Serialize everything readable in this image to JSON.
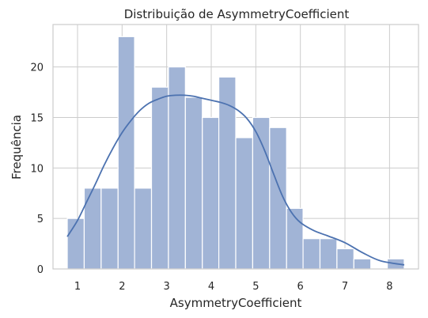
{
  "chart_data": {
    "type": "bar",
    "title": "Distribuição de AsymmetryCoefficient",
    "xlabel": "AsymmetryCoefficient",
    "ylabel": "Frequência",
    "xlim": [
      0.45,
      8.65
    ],
    "ylim": [
      0,
      24.2
    ],
    "xticks": [
      1,
      2,
      3,
      4,
      5,
      6,
      7,
      8
    ],
    "yticks": [
      0,
      5,
      10,
      15,
      20
    ],
    "grid": true,
    "colors": {
      "bar": "#a1b4d6",
      "kde": "#4c72b0",
      "grid": "#cccccc"
    },
    "bins": [
      {
        "x0": 0.77,
        "x1": 1.15,
        "count": 5
      },
      {
        "x0": 1.15,
        "x1": 1.53,
        "count": 8
      },
      {
        "x0": 1.53,
        "x1": 1.91,
        "count": 8
      },
      {
        "x0": 1.91,
        "x1": 2.28,
        "count": 23
      },
      {
        "x0": 2.28,
        "x1": 2.66,
        "count": 8
      },
      {
        "x0": 2.66,
        "x1": 3.04,
        "count": 18
      },
      {
        "x0": 3.04,
        "x1": 3.42,
        "count": 20
      },
      {
        "x0": 3.42,
        "x1": 3.8,
        "count": 17
      },
      {
        "x0": 3.8,
        "x1": 4.17,
        "count": 15
      },
      {
        "x0": 4.17,
        "x1": 4.55,
        "count": 19
      },
      {
        "x0": 4.55,
        "x1": 4.93,
        "count": 13
      },
      {
        "x0": 4.93,
        "x1": 5.31,
        "count": 15
      },
      {
        "x0": 5.31,
        "x1": 5.69,
        "count": 14
      },
      {
        "x0": 5.69,
        "x1": 6.06,
        "count": 6
      },
      {
        "x0": 6.06,
        "x1": 6.44,
        "count": 3
      },
      {
        "x0": 6.44,
        "x1": 6.82,
        "count": 3
      },
      {
        "x0": 6.82,
        "x1": 7.2,
        "count": 2
      },
      {
        "x0": 7.2,
        "x1": 7.58,
        "count": 1
      },
      {
        "x0": 7.58,
        "x1": 7.95,
        "count": 0
      },
      {
        "x0": 7.95,
        "x1": 8.33,
        "count": 1
      }
    ],
    "kde": {
      "x": [
        0.77,
        1.0,
        1.2,
        1.4,
        1.6,
        1.8,
        2.0,
        2.2,
        2.4,
        2.6,
        2.8,
        3.0,
        3.2,
        3.4,
        3.6,
        3.8,
        4.0,
        4.2,
        4.4,
        4.6,
        4.8,
        5.0,
        5.2,
        5.4,
        5.6,
        5.8,
        6.0,
        6.3,
        6.6,
        7.0,
        7.4,
        7.8,
        8.33
      ],
      "y": [
        3.2,
        4.8,
        6.6,
        8.4,
        10.3,
        12.0,
        13.5,
        14.7,
        15.7,
        16.4,
        16.8,
        17.1,
        17.2,
        17.2,
        17.1,
        16.9,
        16.7,
        16.5,
        16.2,
        15.7,
        14.9,
        13.6,
        11.7,
        9.4,
        7.2,
        5.6,
        4.6,
        3.8,
        3.3,
        2.6,
        1.6,
        0.8,
        0.4
      ]
    }
  }
}
